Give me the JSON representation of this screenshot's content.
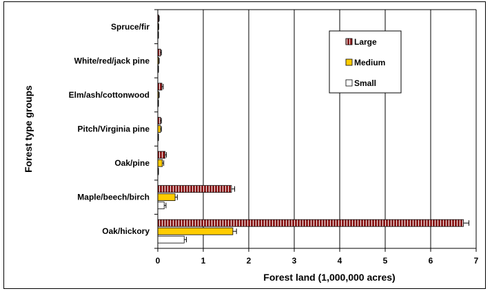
{
  "chart_data": {
    "type": "bar",
    "orientation": "horizontal",
    "categories": [
      "Spruce/fir",
      "White/red/jack pine",
      "Elm/ash/cottonwood",
      "Pitch/Virginia pine",
      "Oak/pine",
      "Maple/beech/birch",
      "Oak/hickory"
    ],
    "series": [
      {
        "name": "Large",
        "values": [
          0.02,
          0.06,
          0.09,
          0.06,
          0.16,
          1.62,
          6.72
        ],
        "errors": [
          0.01,
          0.02,
          0.03,
          0.02,
          0.03,
          0.07,
          0.12
        ],
        "color": "#8b1a1a",
        "pattern": "vertical-stripes"
      },
      {
        "name": "Medium",
        "values": [
          0.01,
          0.02,
          0.02,
          0.06,
          0.1,
          0.38,
          1.65
        ],
        "errors": [
          0.01,
          0.01,
          0.01,
          0.02,
          0.03,
          0.05,
          0.08
        ],
        "color": "#ffcc00",
        "pattern": "solid"
      },
      {
        "name": "Small",
        "values": [
          0.01,
          0.01,
          0.01,
          0.01,
          0.01,
          0.14,
          0.58
        ],
        "errors": [
          0.005,
          0.005,
          0.005,
          0.005,
          0.005,
          0.04,
          0.05
        ],
        "color": "#ffffff",
        "pattern": "solid"
      }
    ],
    "xlabel": "Forest land  (1,000,000 acres)",
    "ylabel": "Forest type groups",
    "xlim": [
      0,
      7
    ],
    "xticks": [
      "0",
      "1",
      "2",
      "3",
      "4",
      "5",
      "6",
      "7"
    ],
    "grid": "vertical",
    "legend_position": "top-right"
  }
}
